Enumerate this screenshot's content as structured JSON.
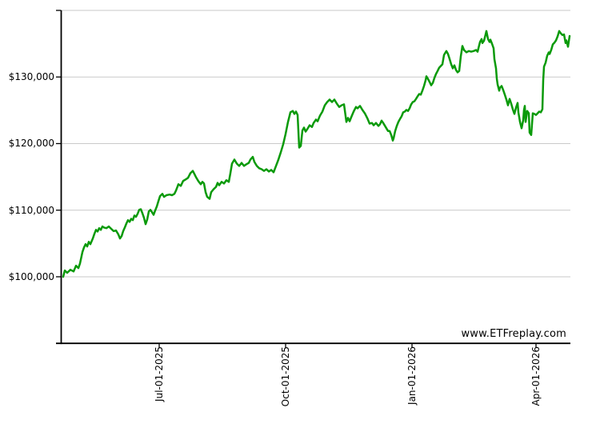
{
  "watermark": "www.ETFreplay.com",
  "chart_data": {
    "type": "line",
    "title": "",
    "description": "Growth of $100,000 equity curve, late Apr 2025 through late Apr 2026",
    "line_color": "#0a9a0a",
    "grid_color": "#c9c9c9",
    "axis_color": "#000000",
    "background": "#ffffff",
    "legend": "none",
    "grid": "horizontal-only",
    "ylim": [
      90000,
      140000
    ],
    "y_grid_values": [
      100000,
      110000,
      120000,
      130000,
      140000
    ],
    "y_tick_labels": [
      {
        "value": 100000,
        "label": "$100,000"
      },
      {
        "value": 110000,
        "label": "$110,000"
      },
      {
        "value": 120000,
        "label": "$120,000"
      },
      {
        "value": 130000,
        "label": "$130,000"
      }
    ],
    "x_axis": {
      "t_max": 633,
      "ticks": [
        {
          "t": 120,
          "label": "Jul-01-2025"
        },
        {
          "t": 278,
          "label": "Oct-01-2025"
        },
        {
          "t": 436,
          "label": "Jan-01-2026"
        },
        {
          "t": 591,
          "label": "Apr-01-2026"
        }
      ]
    },
    "points": [
      [
        0,
        100000
      ],
      [
        2,
        100950
      ],
      [
        5,
        100600
      ],
      [
        9,
        101050
      ],
      [
        13,
        100800
      ],
      [
        16,
        101650
      ],
      [
        19,
        101300
      ],
      [
        21,
        102000
      ],
      [
        24,
        103700
      ],
      [
        26,
        104400
      ],
      [
        28,
        104900
      ],
      [
        30,
        104550
      ],
      [
        32,
        105250
      ],
      [
        34,
        104900
      ],
      [
        37,
        105750
      ],
      [
        39,
        106450
      ],
      [
        41,
        107050
      ],
      [
        43,
        106800
      ],
      [
        45,
        107300
      ],
      [
        47,
        107050
      ],
      [
        49,
        107550
      ],
      [
        51,
        107400
      ],
      [
        54,
        107300
      ],
      [
        57,
        107550
      ],
      [
        60,
        107200
      ],
      [
        63,
        106850
      ],
      [
        66,
        106950
      ],
      [
        69,
        106350
      ],
      [
        71,
        105750
      ],
      [
        73,
        106100
      ],
      [
        75,
        106850
      ],
      [
        77,
        107400
      ],
      [
        79,
        108000
      ],
      [
        81,
        108500
      ],
      [
        83,
        108250
      ],
      [
        85,
        108700
      ],
      [
        87,
        108500
      ],
      [
        89,
        109200
      ],
      [
        91,
        109000
      ],
      [
        93,
        109450
      ],
      [
        95,
        110050
      ],
      [
        97,
        110150
      ],
      [
        99,
        109550
      ],
      [
        101,
        108850
      ],
      [
        103,
        107900
      ],
      [
        105,
        108600
      ],
      [
        107,
        109800
      ],
      [
        109,
        110050
      ],
      [
        111,
        109700
      ],
      [
        113,
        109300
      ],
      [
        115,
        109950
      ],
      [
        117,
        110550
      ],
      [
        119,
        111350
      ],
      [
        121,
        112100
      ],
      [
        124,
        112450
      ],
      [
        126,
        112000
      ],
      [
        129,
        112250
      ],
      [
        133,
        112350
      ],
      [
        136,
        112250
      ],
      [
        139,
        112450
      ],
      [
        141,
        112950
      ],
      [
        144,
        113900
      ],
      [
        147,
        113650
      ],
      [
        150,
        114400
      ],
      [
        153,
        114600
      ],
      [
        156,
        114850
      ],
      [
        159,
        115550
      ],
      [
        162,
        115900
      ],
      [
        164,
        115450
      ],
      [
        166,
        114950
      ],
      [
        169,
        114350
      ],
      [
        172,
        113900
      ],
      [
        174,
        114250
      ],
      [
        176,
        114000
      ],
      [
        178,
        112700
      ],
      [
        180,
        112000
      ],
      [
        183,
        111700
      ],
      [
        185,
        112700
      ],
      [
        188,
        113150
      ],
      [
        191,
        113500
      ],
      [
        193,
        114100
      ],
      [
        195,
        113750
      ],
      [
        198,
        114250
      ],
      [
        201,
        114000
      ],
      [
        204,
        114500
      ],
      [
        207,
        114250
      ],
      [
        209,
        115550
      ],
      [
        211,
        117000
      ],
      [
        214,
        117600
      ],
      [
        217,
        117000
      ],
      [
        220,
        116650
      ],
      [
        223,
        117100
      ],
      [
        226,
        116650
      ],
      [
        229,
        116900
      ],
      [
        232,
        117100
      ],
      [
        234,
        117600
      ],
      [
        237,
        118000
      ],
      [
        239,
        117250
      ],
      [
        242,
        116650
      ],
      [
        245,
        116300
      ],
      [
        248,
        116150
      ],
      [
        251,
        115900
      ],
      [
        254,
        116150
      ],
      [
        257,
        115800
      ],
      [
        260,
        116050
      ],
      [
        263,
        115700
      ],
      [
        266,
        116650
      ],
      [
        269,
        117600
      ],
      [
        272,
        118700
      ],
      [
        275,
        119900
      ],
      [
        278,
        121450
      ],
      [
        281,
        123250
      ],
      [
        284,
        124700
      ],
      [
        287,
        124900
      ],
      [
        289,
        124450
      ],
      [
        291,
        124800
      ],
      [
        293,
        124300
      ],
      [
        295,
        119400
      ],
      [
        297,
        119650
      ],
      [
        299,
        121950
      ],
      [
        301,
        122400
      ],
      [
        303,
        121800
      ],
      [
        305,
        122150
      ],
      [
        308,
        122750
      ],
      [
        311,
        122500
      ],
      [
        313,
        123100
      ],
      [
        316,
        123600
      ],
      [
        318,
        123350
      ],
      [
        321,
        124200
      ],
      [
        324,
        124800
      ],
      [
        327,
        125750
      ],
      [
        330,
        126250
      ],
      [
        333,
        126600
      ],
      [
        336,
        126250
      ],
      [
        339,
        126600
      ],
      [
        342,
        126000
      ],
      [
        345,
        125500
      ],
      [
        348,
        125750
      ],
      [
        351,
        125900
      ],
      [
        354,
        123250
      ],
      [
        356,
        123850
      ],
      [
        358,
        123350
      ],
      [
        360,
        123950
      ],
      [
        363,
        124800
      ],
      [
        366,
        125500
      ],
      [
        368,
        125300
      ],
      [
        371,
        125650
      ],
      [
        374,
        125050
      ],
      [
        377,
        124550
      ],
      [
        380,
        123850
      ],
      [
        383,
        123000
      ],
      [
        386,
        123100
      ],
      [
        388,
        122750
      ],
      [
        391,
        123100
      ],
      [
        394,
        122650
      ],
      [
        396,
        122900
      ],
      [
        398,
        123450
      ],
      [
        400,
        123100
      ],
      [
        403,
        122500
      ],
      [
        406,
        121900
      ],
      [
        408,
        121900
      ],
      [
        410,
        121300
      ],
      [
        412,
        120450
      ],
      [
        413,
        120800
      ],
      [
        415,
        121900
      ],
      [
        417,
        122650
      ],
      [
        419,
        123250
      ],
      [
        421,
        123700
      ],
      [
        423,
        124100
      ],
      [
        425,
        124700
      ],
      [
        427,
        124800
      ],
      [
        429,
        125050
      ],
      [
        431,
        124900
      ],
      [
        433,
        125300
      ],
      [
        435,
        125900
      ],
      [
        437,
        126250
      ],
      [
        439,
        126350
      ],
      [
        441,
        126700
      ],
      [
        443,
        127100
      ],
      [
        445,
        127450
      ],
      [
        447,
        127350
      ],
      [
        449,
        127950
      ],
      [
        451,
        128650
      ],
      [
        453,
        129500
      ],
      [
        454,
        130100
      ],
      [
        456,
        129700
      ],
      [
        458,
        129250
      ],
      [
        460,
        128750
      ],
      [
        462,
        129100
      ],
      [
        464,
        129850
      ],
      [
        466,
        130450
      ],
      [
        468,
        130900
      ],
      [
        470,
        131400
      ],
      [
        472,
        131650
      ],
      [
        474,
        131900
      ],
      [
        476,
        133300
      ],
      [
        478,
        133700
      ],
      [
        479,
        133900
      ],
      [
        481,
        133450
      ],
      [
        483,
        132700
      ],
      [
        485,
        131900
      ],
      [
        487,
        131300
      ],
      [
        489,
        131750
      ],
      [
        491,
        131050
      ],
      [
        493,
        130700
      ],
      [
        495,
        130900
      ],
      [
        497,
        133100
      ],
      [
        499,
        134650
      ],
      [
        501,
        134050
      ],
      [
        504,
        133700
      ],
      [
        507,
        133900
      ],
      [
        510,
        133800
      ],
      [
        513,
        133900
      ],
      [
        516,
        134050
      ],
      [
        518,
        133800
      ],
      [
        521,
        135250
      ],
      [
        523,
        135700
      ],
      [
        524,
        135100
      ],
      [
        526,
        135450
      ],
      [
        528,
        136400
      ],
      [
        529,
        136900
      ],
      [
        531,
        135700
      ],
      [
        533,
        135250
      ],
      [
        534,
        135600
      ],
      [
        536,
        135000
      ],
      [
        538,
        134300
      ],
      [
        539,
        132700
      ],
      [
        541,
        131300
      ],
      [
        542,
        129750
      ],
      [
        543,
        128900
      ],
      [
        545,
        127950
      ],
      [
        546,
        128400
      ],
      [
        548,
        128650
      ],
      [
        550,
        128050
      ],
      [
        552,
        127350
      ],
      [
        554,
        126600
      ],
      [
        556,
        125750
      ],
      [
        557,
        126250
      ],
      [
        558,
        126700
      ],
      [
        560,
        126000
      ],
      [
        562,
        125150
      ],
      [
        564,
        124450
      ],
      [
        566,
        125400
      ],
      [
        568,
        126100
      ],
      [
        569,
        124700
      ],
      [
        571,
        123250
      ],
      [
        573,
        122300
      ],
      [
        575,
        123500
      ],
      [
        576,
        125050
      ],
      [
        577,
        125650
      ],
      [
        578,
        123250
      ],
      [
        580,
        124900
      ],
      [
        582,
        124550
      ],
      [
        583,
        121650
      ],
      [
        585,
        121300
      ],
      [
        587,
        124550
      ],
      [
        589,
        124450
      ],
      [
        591,
        124300
      ],
      [
        593,
        124550
      ],
      [
        595,
        124800
      ],
      [
        597,
        124700
      ],
      [
        599,
        125150
      ],
      [
        600,
        129500
      ],
      [
        601,
        131550
      ],
      [
        603,
        132150
      ],
      [
        605,
        133200
      ],
      [
        607,
        133700
      ],
      [
        608,
        133450
      ],
      [
        610,
        134050
      ],
      [
        612,
        134900
      ],
      [
        614,
        135150
      ],
      [
        616,
        135500
      ],
      [
        618,
        136100
      ],
      [
        620,
        136900
      ],
      [
        622,
        136550
      ],
      [
        624,
        136300
      ],
      [
        626,
        136400
      ],
      [
        628,
        135100
      ],
      [
        629,
        135500
      ],
      [
        631,
        134550
      ],
      [
        633,
        136150
      ]
    ]
  }
}
